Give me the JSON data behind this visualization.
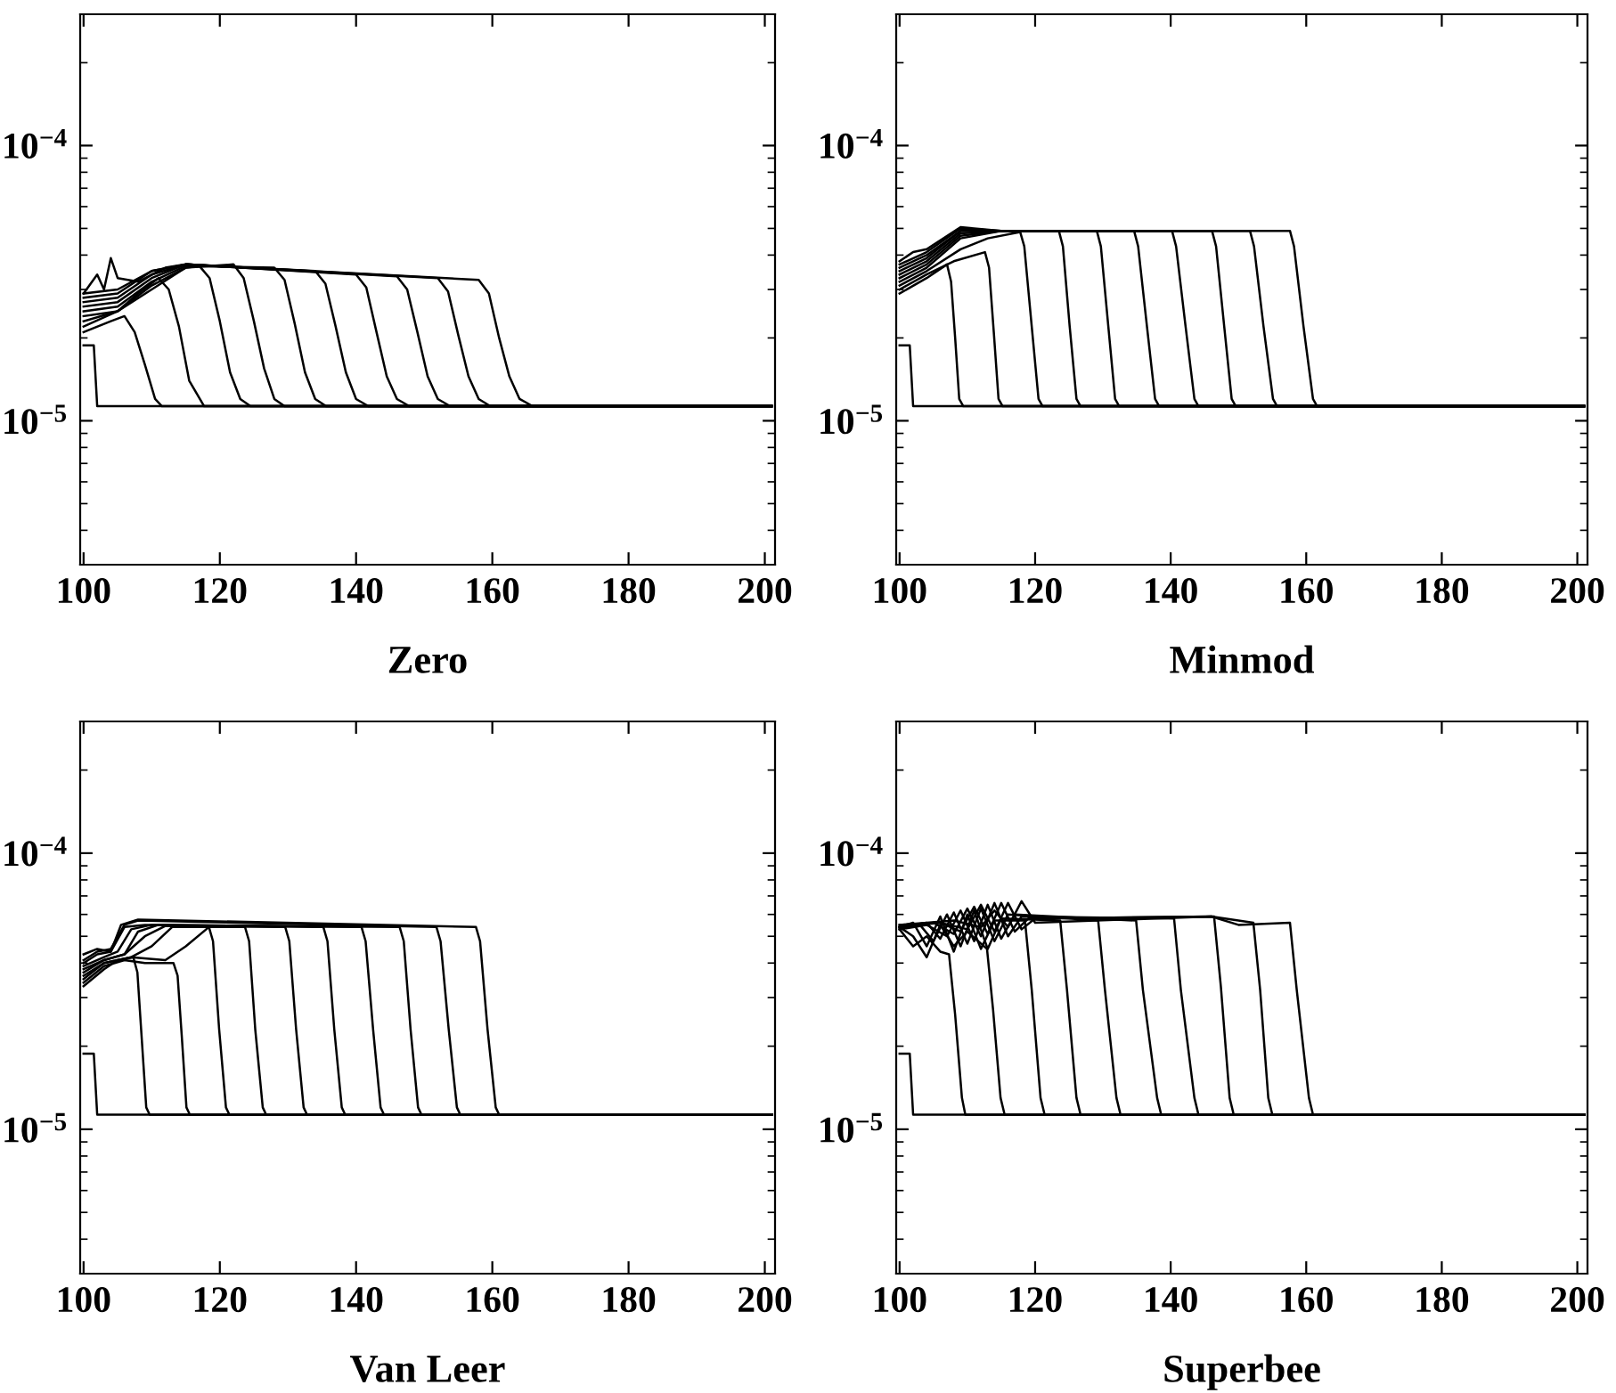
{
  "chart_data": [
    {
      "type": "line",
      "xlabel": "Zero",
      "log": "y",
      "grid": false,
      "xlim": [
        99.5,
        201.5
      ],
      "ylim": [
        3e-06,
        0.0003
      ],
      "xticks": [
        100,
        120,
        140,
        160,
        180,
        200
      ],
      "yticks": [
        {
          "value": 3e-06,
          "label": null
        },
        {
          "value": 4e-06,
          "label": null
        },
        {
          "value": 5e-06,
          "label": null
        },
        {
          "value": 6e-06,
          "label": null
        },
        {
          "value": 7e-06,
          "label": null
        },
        {
          "value": 8e-06,
          "label": null
        },
        {
          "value": 9e-06,
          "label": null
        },
        {
          "value": 1e-05,
          "label": "10$^{−5}$"
        },
        {
          "value": 2e-05,
          "label": null
        },
        {
          "value": 3e-05,
          "label": null
        },
        {
          "value": 4e-05,
          "label": null
        },
        {
          "value": 5e-05,
          "label": null
        },
        {
          "value": 6e-05,
          "label": null
        },
        {
          "value": 7e-05,
          "label": null
        },
        {
          "value": 8e-05,
          "label": null
        },
        {
          "value": 9e-05,
          "label": null
        },
        {
          "value": 0.0001,
          "label": "10$^{−4}$"
        },
        {
          "value": 0.0002,
          "label": null
        },
        {
          "value": 0.0003,
          "label": null
        }
      ],
      "series": [
        {
          "color": "#000000",
          "x": [
            100,
            101.5,
            102,
            201
          ],
          "values": [
            1.88e-05,
            1.88e-05,
            1.13e-05,
            1.13e-05
          ]
        },
        {
          "color": "#000000",
          "x": [
            100,
            104,
            106,
            107.5,
            109,
            110.5,
            111.5,
            201
          ],
          "values": [
            2.1e-05,
            2.3e-05,
            2.4e-05,
            2.1e-05,
            1.6e-05,
            1.2e-05,
            1.13e-05,
            1.13e-05
          ]
        },
        {
          "color": "#000000",
          "x": [
            100,
            105,
            108,
            111,
            112.5,
            114,
            115.5,
            117.7,
            201
          ],
          "values": [
            2.2e-05,
            2.5e-05,
            2.9e-05,
            3.3e-05,
            3e-05,
            2.2e-05,
            1.4e-05,
            1.13e-05,
            1.13e-05
          ]
        },
        {
          "color": "#000000",
          "x": [
            100,
            105,
            110,
            115,
            117,
            118.5,
            120,
            121.5,
            123,
            124.5,
            201
          ],
          "values": [
            2.3e-05,
            2.5e-05,
            3e-05,
            3.6e-05,
            3.65e-05,
            3.3e-05,
            2.3e-05,
            1.5e-05,
            1.2e-05,
            1.13e-05,
            1.13e-05
          ]
        },
        {
          "color": "#000000",
          "x": [
            100,
            105,
            110,
            115,
            122,
            123.5,
            125,
            126.5,
            128,
            129.5,
            201
          ],
          "values": [
            2.4e-05,
            2.5e-05,
            3.1e-05,
            3.6e-05,
            3.7e-05,
            3.3e-05,
            2.3e-05,
            1.55e-05,
            1.2e-05,
            1.13e-05,
            1.13e-05
          ]
        },
        {
          "color": "#000000",
          "x": [
            100,
            105,
            110,
            115,
            128,
            129.5,
            131,
            132.5,
            134,
            135.6,
            201
          ],
          "values": [
            2.5e-05,
            2.6e-05,
            3.2e-05,
            3.65e-05,
            3.6e-05,
            3.25e-05,
            2.25e-05,
            1.5e-05,
            1.2e-05,
            1.13e-05,
            1.13e-05
          ]
        },
        {
          "color": "#000000",
          "x": [
            100,
            105,
            110,
            115,
            134,
            135.5,
            137,
            138.5,
            140,
            141.8,
            201
          ],
          "values": [
            2.6e-05,
            2.7e-05,
            3.3e-05,
            3.7e-05,
            3.5e-05,
            3.15e-05,
            2.2e-05,
            1.5e-05,
            1.2e-05,
            1.13e-05,
            1.13e-05
          ]
        },
        {
          "color": "#000000",
          "x": [
            100,
            105,
            110,
            115,
            140,
            141.5,
            143,
            144.5,
            146,
            147.8,
            201
          ],
          "values": [
            2.7e-05,
            2.8e-05,
            3.4e-05,
            3.7e-05,
            3.4e-05,
            3.05e-05,
            2.1e-05,
            1.45e-05,
            1.2e-05,
            1.13e-05,
            1.13e-05
          ]
        },
        {
          "color": "#000000",
          "x": [
            100,
            105,
            110,
            115,
            146,
            147.5,
            149,
            150.5,
            152,
            153.8,
            201
          ],
          "values": [
            2.8e-05,
            2.9e-05,
            3.5e-05,
            3.7e-05,
            3.35e-05,
            3e-05,
            2.1e-05,
            1.45e-05,
            1.2e-05,
            1.13e-05,
            1.13e-05
          ]
        },
        {
          "color": "#000000",
          "x": [
            100,
            105,
            110,
            115,
            152,
            153.5,
            155,
            156.5,
            158,
            159.7,
            201
          ],
          "values": [
            2.9e-05,
            3e-05,
            3.5e-05,
            3.7e-05,
            3.3e-05,
            2.95e-05,
            2.05e-05,
            1.45e-05,
            1.2e-05,
            1.13e-05,
            1.13e-05
          ]
        },
        {
          "color": "#000000",
          "x": [
            100,
            102,
            103,
            104,
            105,
            108,
            112,
            115,
            158,
            159.5,
            161,
            162.5,
            164,
            165.9,
            201
          ],
          "values": [
            2.9e-05,
            3.4e-05,
            3e-05,
            3.9e-05,
            3.3e-05,
            3.2e-05,
            3.6e-05,
            3.7e-05,
            3.25e-05,
            2.9e-05,
            2e-05,
            1.45e-05,
            1.2e-05,
            1.13e-05,
            1.13e-05
          ]
        }
      ]
    },
    {
      "type": "line",
      "xlabel": "Minmod",
      "log": "y",
      "grid": false,
      "xlim": [
        99.5,
        201.5
      ],
      "ylim": [
        3e-06,
        0.0003
      ],
      "xticks": [
        100,
        120,
        140,
        160,
        180,
        200
      ],
      "yticks": [
        {
          "value": 3e-06,
          "label": null
        },
        {
          "value": 4e-06,
          "label": null
        },
        {
          "value": 5e-06,
          "label": null
        },
        {
          "value": 6e-06,
          "label": null
        },
        {
          "value": 7e-06,
          "label": null
        },
        {
          "value": 8e-06,
          "label": null
        },
        {
          "value": 9e-06,
          "label": null
        },
        {
          "value": 1e-05,
          "label": "10$^{−5}$"
        },
        {
          "value": 2e-05,
          "label": null
        },
        {
          "value": 3e-05,
          "label": null
        },
        {
          "value": 4e-05,
          "label": null
        },
        {
          "value": 5e-05,
          "label": null
        },
        {
          "value": 6e-05,
          "label": null
        },
        {
          "value": 7e-05,
          "label": null
        },
        {
          "value": 8e-05,
          "label": null
        },
        {
          "value": 9e-05,
          "label": null
        },
        {
          "value": 0.0001,
          "label": "10$^{−4}$"
        },
        {
          "value": 0.0002,
          "label": null
        },
        {
          "value": 0.0003,
          "label": null
        }
      ],
      "series": [
        {
          "color": "#000000",
          "x": [
            100,
            101.5,
            102,
            201
          ],
          "values": [
            1.88e-05,
            1.88e-05,
            1.13e-05,
            1.13e-05
          ]
        },
        {
          "color": "#000000",
          "x": [
            100,
            104,
            107,
            107.6,
            108.2,
            108.8,
            109.4,
            201
          ],
          "values": [
            2.9e-05,
            3.3e-05,
            3.7e-05,
            3.2e-05,
            2e-05,
            1.2e-05,
            1.13e-05,
            1.13e-05
          ]
        },
        {
          "color": "#000000",
          "x": [
            100,
            104,
            108,
            112.6,
            113.2,
            113.9,
            114.6,
            115.2,
            201
          ],
          "values": [
            3e-05,
            3.4e-05,
            3.8e-05,
            4.1e-05,
            3.6e-05,
            2.1e-05,
            1.2e-05,
            1.13e-05,
            1.13e-05
          ]
        },
        {
          "color": "#000000",
          "x": [
            100,
            104,
            109,
            113,
            117.8,
            118.4,
            119.5,
            120.5,
            121.1,
            201
          ],
          "values": [
            3.1e-05,
            3.5e-05,
            4.2e-05,
            4.6e-05,
            4.85e-05,
            4.3e-05,
            2.2e-05,
            1.2e-05,
            1.13e-05,
            1.13e-05
          ]
        },
        {
          "color": "#000000",
          "x": [
            100,
            104,
            109,
            115,
            123.5,
            124.1,
            125.1,
            126.1,
            126.7,
            201
          ],
          "values": [
            3.2e-05,
            3.6e-05,
            4.6e-05,
            4.9e-05,
            4.9e-05,
            4.3e-05,
            2.2e-05,
            1.2e-05,
            1.13e-05,
            1.13e-05
          ]
        },
        {
          "color": "#000000",
          "x": [
            100,
            104,
            109,
            115,
            129.1,
            129.7,
            130.8,
            131.8,
            132.4,
            201
          ],
          "values": [
            3.3e-05,
            3.7e-05,
            4.7e-05,
            4.9e-05,
            4.9e-05,
            4.3e-05,
            2.2e-05,
            1.2e-05,
            1.13e-05,
            1.13e-05
          ]
        },
        {
          "color": "#000000",
          "x": [
            100,
            104,
            109,
            115,
            134.6,
            135.2,
            136.5,
            137.7,
            138.3,
            201
          ],
          "values": [
            3.4e-05,
            3.8e-05,
            4.8e-05,
            4.9e-05,
            4.9e-05,
            4.3e-05,
            2.2e-05,
            1.2e-05,
            1.13e-05,
            1.13e-05
          ]
        },
        {
          "color": "#000000",
          "x": [
            100,
            104,
            109,
            115,
            140.2,
            140.8,
            142.2,
            143.5,
            144.1,
            201
          ],
          "values": [
            3.5e-05,
            3.9e-05,
            4.9e-05,
            4.9e-05,
            4.9e-05,
            4.3e-05,
            2.2e-05,
            1.2e-05,
            1.13e-05,
            1.13e-05
          ]
        },
        {
          "color": "#000000",
          "x": [
            100,
            104,
            109,
            115,
            146.1,
            146.7,
            147.9,
            149.0,
            149.6,
            201
          ],
          "values": [
            3.6e-05,
            4e-05,
            4.9e-05,
            4.9e-05,
            4.9e-05,
            4.3e-05,
            2.2e-05,
            1.2e-05,
            1.13e-05,
            1.13e-05
          ]
        },
        {
          "color": "#000000",
          "x": [
            100,
            104,
            109,
            115,
            151.7,
            152.3,
            153.7,
            155.1,
            155.7,
            201
          ],
          "values": [
            3.7e-05,
            4.1e-05,
            5e-05,
            4.9e-05,
            4.9e-05,
            4.3e-05,
            2.2e-05,
            1.2e-05,
            1.13e-05,
            1.13e-05
          ]
        },
        {
          "color": "#000000",
          "x": [
            100,
            102,
            104,
            109,
            115,
            157.6,
            158.2,
            159.6,
            161.0,
            161.6,
            201
          ],
          "values": [
            3.8e-05,
            4.1e-05,
            4.2e-05,
            5.05e-05,
            4.9e-05,
            4.9e-05,
            4.3e-05,
            2.2e-05,
            1.2e-05,
            1.13e-05,
            1.13e-05
          ]
        }
      ]
    },
    {
      "type": "line",
      "xlabel": "Van Leer",
      "log": "y",
      "grid": false,
      "xlim": [
        99.5,
        201.5
      ],
      "ylim": [
        3e-06,
        0.0003
      ],
      "xticks": [
        100,
        120,
        140,
        160,
        180,
        200
      ],
      "yticks": [
        {
          "value": 3e-06,
          "label": null
        },
        {
          "value": 4e-06,
          "label": null
        },
        {
          "value": 5e-06,
          "label": null
        },
        {
          "value": 6e-06,
          "label": null
        },
        {
          "value": 7e-06,
          "label": null
        },
        {
          "value": 8e-06,
          "label": null
        },
        {
          "value": 9e-06,
          "label": null
        },
        {
          "value": 1e-05,
          "label": "10$^{−5}$"
        },
        {
          "value": 2e-05,
          "label": null
        },
        {
          "value": 3e-05,
          "label": null
        },
        {
          "value": 4e-05,
          "label": null
        },
        {
          "value": 5e-05,
          "label": null
        },
        {
          "value": 6e-05,
          "label": null
        },
        {
          "value": 7e-05,
          "label": null
        },
        {
          "value": 8e-05,
          "label": null
        },
        {
          "value": 9e-05,
          "label": null
        },
        {
          "value": 0.0001,
          "label": "10$^{−4}$"
        },
        {
          "value": 0.0002,
          "label": null
        },
        {
          "value": 0.0003,
          "label": null
        }
      ],
      "series": [
        {
          "color": "#000000",
          "x": [
            100,
            101.5,
            102,
            201
          ],
          "values": [
            1.88e-05,
            1.88e-05,
            1.13e-05,
            1.13e-05
          ]
        },
        {
          "color": "#000000",
          "x": [
            100,
            103,
            105,
            107.3,
            107.9,
            108.5,
            109.2,
            109.7,
            201
          ],
          "values": [
            3.3e-05,
            3.8e-05,
            4.1e-05,
            4.2e-05,
            3.7e-05,
            2.2e-05,
            1.2e-05,
            1.13e-05,
            1.13e-05
          ]
        },
        {
          "color": "#000000",
          "x": [
            100,
            103,
            106,
            109,
            113.2,
            113.8,
            114.4,
            115.1,
            115.6,
            201
          ],
          "values": [
            3.4e-05,
            3.9e-05,
            4.1e-05,
            4e-05,
            4e-05,
            3.6e-05,
            2.2e-05,
            1.2e-05,
            1.13e-05,
            1.13e-05
          ]
        },
        {
          "color": "#000000",
          "x": [
            100,
            103,
            107,
            112,
            115,
            118.4,
            119.0,
            119.9,
            120.9,
            121.4,
            201
          ],
          "values": [
            3.5e-05,
            4e-05,
            4.2e-05,
            4.1e-05,
            4.6e-05,
            5.4e-05,
            4.8e-05,
            2.3e-05,
            1.2e-05,
            1.13e-05,
            1.13e-05
          ]
        },
        {
          "color": "#000000",
          "x": [
            100,
            103,
            107,
            110,
            113,
            123.7,
            124.3,
            125.2,
            126.3,
            126.8,
            201
          ],
          "values": [
            3.6e-05,
            4e-05,
            4.2e-05,
            4.6e-05,
            5.4e-05,
            5.4e-05,
            4.8e-05,
            2.3e-05,
            1.2e-05,
            1.13e-05,
            1.13e-05
          ]
        },
        {
          "color": "#000000",
          "x": [
            100,
            103,
            106,
            109,
            112,
            129.6,
            130.2,
            131.2,
            132.3,
            132.8,
            201
          ],
          "values": [
            3.7e-05,
            4.1e-05,
            4.3e-05,
            5e-05,
            5.45e-05,
            5.4e-05,
            4.8e-05,
            2.3e-05,
            1.2e-05,
            1.13e-05,
            1.13e-05
          ]
        },
        {
          "color": "#000000",
          "x": [
            100,
            103,
            106,
            108,
            111,
            135.2,
            135.8,
            136.8,
            137.9,
            138.4,
            201
          ],
          "values": [
            3.8e-05,
            4.1e-05,
            4.3e-05,
            5.2e-05,
            5.5e-05,
            5.4e-05,
            4.8e-05,
            2.3e-05,
            1.2e-05,
            1.13e-05,
            1.13e-05
          ]
        },
        {
          "color": "#000000",
          "x": [
            100,
            103,
            105,
            107,
            110,
            140.8,
            141.4,
            142.5,
            143.6,
            144.1,
            201
          ],
          "values": [
            3.9e-05,
            4.2e-05,
            4.4e-05,
            5.3e-05,
            5.5e-05,
            5.4e-05,
            4.8e-05,
            2.3e-05,
            1.2e-05,
            1.13e-05,
            1.13e-05
          ]
        },
        {
          "color": "#000000",
          "x": [
            100,
            102,
            104,
            106,
            109,
            146.4,
            147.0,
            148.0,
            149.1,
            149.6,
            201
          ],
          "values": [
            4e-05,
            4.3e-05,
            4.4e-05,
            5.4e-05,
            5.5e-05,
            5.4e-05,
            4.8e-05,
            2.3e-05,
            1.2e-05,
            1.13e-05,
            1.13e-05
          ]
        },
        {
          "color": "#000000",
          "x": [
            100,
            102,
            104,
            106,
            108,
            151.8,
            152.4,
            153.6,
            154.8,
            155.3,
            201
          ],
          "values": [
            4.1e-05,
            4.4e-05,
            4.5e-05,
            5.5e-05,
            5.7e-05,
            5.4e-05,
            4.8e-05,
            2.3e-05,
            1.2e-05,
            1.13e-05,
            1.13e-05
          ]
        },
        {
          "color": "#000000",
          "x": [
            100,
            102,
            104,
            105.5,
            108,
            157.6,
            158.2,
            159.3,
            160.5,
            161.0,
            201
          ],
          "values": [
            4.3e-05,
            4.5e-05,
            4.4e-05,
            5.5e-05,
            5.75e-05,
            5.4e-05,
            4.8e-05,
            2.3e-05,
            1.2e-05,
            1.13e-05,
            1.13e-05
          ]
        }
      ]
    },
    {
      "type": "line",
      "xlabel": "Superbee",
      "log": "y",
      "grid": false,
      "xlim": [
        99.5,
        201.5
      ],
      "ylim": [
        3e-06,
        0.0003
      ],
      "xticks": [
        100,
        120,
        140,
        160,
        180,
        200
      ],
      "yticks": [
        {
          "value": 3e-06,
          "label": null
        },
        {
          "value": 4e-06,
          "label": null
        },
        {
          "value": 5e-06,
          "label": null
        },
        {
          "value": 6e-06,
          "label": null
        },
        {
          "value": 7e-06,
          "label": null
        },
        {
          "value": 8e-06,
          "label": null
        },
        {
          "value": 9e-06,
          "label": null
        },
        {
          "value": 1e-05,
          "label": "10$^{−5}$"
        },
        {
          "value": 2e-05,
          "label": null
        },
        {
          "value": 3e-05,
          "label": null
        },
        {
          "value": 4e-05,
          "label": null
        },
        {
          "value": 5e-05,
          "label": null
        },
        {
          "value": 6e-05,
          "label": null
        },
        {
          "value": 7e-05,
          "label": null
        },
        {
          "value": 8e-05,
          "label": null
        },
        {
          "value": 9e-05,
          "label": null
        },
        {
          "value": 0.0001,
          "label": "10$^{−4}$"
        },
        {
          "value": 0.0002,
          "label": null
        },
        {
          "value": 0.0003,
          "label": null
        }
      ],
      "series": [
        {
          "color": "#000000",
          "x": [
            100,
            101.5,
            102,
            201
          ],
          "values": [
            1.88e-05,
            1.88e-05,
            1.13e-05,
            1.13e-05
          ]
        },
        {
          "color": "#000000",
          "x": [
            100,
            102,
            104,
            106,
            107.3,
            108.2,
            109.2,
            109.7,
            201
          ],
          "values": [
            5.3e-05,
            4.6e-05,
            5e-05,
            4.4e-05,
            4.3e-05,
            2.6e-05,
            1.3e-05,
            1.13e-05,
            1.13e-05
          ]
        },
        {
          "color": "#000000",
          "x": [
            100,
            102,
            104,
            106,
            108,
            110,
            112.9,
            113.8,
            114.9,
            115.5,
            201
          ],
          "values": [
            5.4e-05,
            5e-05,
            4.2e-05,
            5.5e-05,
            4.6e-05,
            5.2e-05,
            4.5e-05,
            2.7e-05,
            1.3e-05,
            1.13e-05,
            1.13e-05
          ]
        },
        {
          "color": "#000000",
          "x": [
            100,
            102,
            104,
            106,
            108,
            110,
            112,
            114,
            118.5,
            119.5,
            120.8,
            121.4,
            201
          ],
          "values": [
            5.4e-05,
            5.6e-05,
            4.6e-05,
            5.9e-05,
            4.4e-05,
            6e-05,
            4.5e-05,
            5.7e-05,
            5.7e-05,
            3.2e-05,
            1.3e-05,
            1.13e-05,
            1.13e-05
          ]
        },
        {
          "color": "#000000",
          "x": [
            100,
            103,
            105,
            107,
            109,
            111,
            113,
            115,
            123.7,
            124.7,
            126.1,
            126.7,
            201
          ],
          "values": [
            5.3e-05,
            5.5e-05,
            4.8e-05,
            6e-05,
            4.6e-05,
            6.2e-05,
            4.5e-05,
            5.8e-05,
            5.7e-05,
            3.2e-05,
            1.3e-05,
            1.13e-05,
            1.13e-05
          ]
        },
        {
          "color": "#000000",
          "x": [
            100,
            104,
            106,
            108,
            110,
            112,
            114,
            116,
            129.3,
            130.3,
            132.0,
            132.6,
            201
          ],
          "values": [
            5.4e-05,
            5.6e-05,
            4.9e-05,
            6.1e-05,
            4.7e-05,
            6.3e-05,
            4.8e-05,
            6e-05,
            5.7e-05,
            3.2e-05,
            1.3e-05,
            1.13e-05,
            1.13e-05
          ]
        },
        {
          "color": "#000000",
          "x": [
            100,
            104,
            107,
            109,
            111,
            113,
            115,
            117,
            134.9,
            135.9,
            138.0,
            138.6,
            201
          ],
          "values": [
            5.3e-05,
            5.5e-05,
            5e-05,
            6.2e-05,
            4.8e-05,
            6.5e-05,
            4.9e-05,
            6e-05,
            5.7e-05,
            3.2e-05,
            1.3e-05,
            1.13e-05,
            1.13e-05
          ]
        },
        {
          "color": "#000000",
          "x": [
            100,
            105,
            108,
            110,
            112,
            114,
            116,
            118,
            140.5,
            141.5,
            143.5,
            144.1,
            201
          ],
          "values": [
            5.4e-05,
            5.6e-05,
            5.1e-05,
            6.3e-05,
            5e-05,
            6.6e-05,
            5e-05,
            5.9e-05,
            5.8e-05,
            3.2e-05,
            1.3e-05,
            1.13e-05,
            1.13e-05
          ]
        },
        {
          "color": "#000000",
          "x": [
            100,
            106,
            109,
            111,
            113,
            115,
            117,
            119,
            146.4,
            147.4,
            148.7,
            149.3,
            201
          ],
          "values": [
            5.5e-05,
            5.6e-05,
            5.2e-05,
            6.4e-05,
            5.1e-05,
            6.6e-05,
            5.2e-05,
            5.8e-05,
            5.9e-05,
            3.3e-05,
            1.3e-05,
            1.13e-05,
            1.13e-05
          ]
        },
        {
          "color": "#000000",
          "x": [
            100,
            106,
            110,
            112,
            114,
            116,
            118,
            120,
            146,
            152.2,
            153.2,
            154.4,
            155.0,
            201
          ],
          "values": [
            5.4e-05,
            5.6e-05,
            5.3e-05,
            6.5e-05,
            5.2e-05,
            6.6e-05,
            5.3e-05,
            5.8e-05,
            5.9e-05,
            5.6e-05,
            3.2e-05,
            1.3e-05,
            1.13e-05,
            1.13e-05
          ]
        },
        {
          "color": "#000000",
          "x": [
            100,
            108,
            112,
            114,
            116,
            118,
            120,
            146,
            150,
            157.6,
            158.6,
            160.4,
            161.0,
            201
          ],
          "values": [
            5.5e-05,
            5.7e-05,
            5.4e-05,
            6.2e-05,
            5.4e-05,
            6.7e-05,
            5.6e-05,
            5.9e-05,
            5.5e-05,
            5.6e-05,
            3.2e-05,
            1.3e-05,
            1.13e-05,
            1.13e-05
          ]
        }
      ]
    }
  ]
}
